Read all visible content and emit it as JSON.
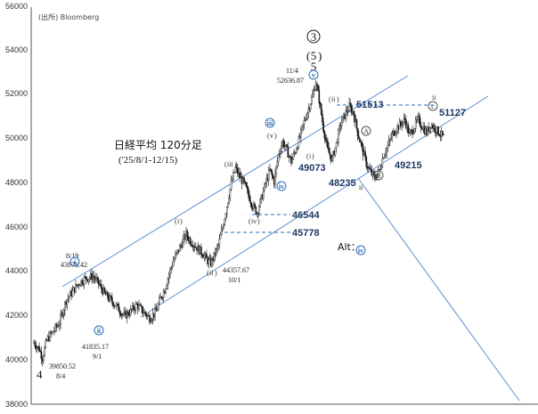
{
  "header": {
    "source": "(出所)  Bloomberg",
    "title": "日経平均 120分足",
    "subtitle": "('25/8/1-12/15)"
  },
  "chart_data": {
    "type": "candlestick",
    "y_ticks": [
      "38000",
      "40000",
      "42000",
      "44000",
      "46000",
      "48000",
      "50000",
      "52000",
      "54000",
      "56000"
    ],
    "ylim": [
      38000,
      56000
    ],
    "price_path": [
      [
        0,
        40800
      ],
      [
        5,
        40500
      ],
      [
        8,
        40100
      ],
      [
        12,
        40900
      ],
      [
        18,
        41300
      ],
      [
        24,
        41700
      ],
      [
        30,
        42700
      ],
      [
        36,
        43100
      ],
      [
        42,
        43500
      ],
      [
        48,
        43700
      ],
      [
        55,
        43800
      ],
      [
        60,
        43500
      ],
      [
        66,
        43000
      ],
      [
        72,
        42700
      ],
      [
        78,
        42400
      ],
      [
        84,
        42000
      ],
      [
        90,
        42200
      ],
      [
        96,
        42500
      ],
      [
        102,
        42200
      ],
      [
        108,
        41900
      ],
      [
        114,
        42200
      ],
      [
        118,
        42800
      ],
      [
        122,
        43200
      ],
      [
        126,
        43900
      ],
      [
        130,
        44500
      ],
      [
        134,
        44900
      ],
      [
        138,
        45300
      ],
      [
        142,
        45700
      ],
      [
        146,
        45400
      ],
      [
        152,
        45100
      ],
      [
        158,
        44800
      ],
      [
        162,
        44500
      ],
      [
        165,
        44400
      ],
      [
        168,
        44700
      ],
      [
        172,
        45200
      ],
      [
        176,
        46000
      ],
      [
        180,
        47000
      ],
      [
        184,
        48000
      ],
      [
        188,
        48700
      ],
      [
        192,
        48300
      ],
      [
        196,
        48000
      ],
      [
        200,
        47500
      ],
      [
        204,
        47000
      ],
      [
        208,
        46700
      ],
      [
        212,
        47300
      ],
      [
        216,
        48000
      ],
      [
        220,
        48600
      ],
      [
        224,
        48100
      ],
      [
        228,
        49300
      ],
      [
        232,
        49900
      ],
      [
        236,
        49500
      ],
      [
        240,
        49000
      ],
      [
        244,
        49500
      ],
      [
        248,
        50100
      ],
      [
        252,
        50800
      ],
      [
        256,
        51400
      ],
      [
        260,
        52000
      ],
      [
        263,
        52600
      ],
      [
        266,
        51800
      ],
      [
        270,
        50500
      ],
      [
        274,
        49500
      ],
      [
        278,
        49100
      ],
      [
        282,
        49800
      ],
      [
        286,
        50700
      ],
      [
        290,
        51100
      ],
      [
        294,
        51500
      ],
      [
        298,
        51200
      ],
      [
        302,
        50300
      ],
      [
        306,
        49600
      ],
      [
        310,
        48900
      ],
      [
        314,
        48500
      ],
      [
        318,
        48250
      ],
      [
        322,
        48600
      ],
      [
        326,
        49300
      ],
      [
        330,
        49700
      ],
      [
        334,
        50200
      ],
      [
        338,
        50500
      ],
      [
        342,
        50700
      ],
      [
        346,
        50900
      ],
      [
        350,
        50200
      ],
      [
        354,
        50500
      ],
      [
        358,
        50900
      ],
      [
        362,
        50600
      ],
      [
        366,
        50300
      ],
      [
        370,
        50700
      ],
      [
        374,
        50500
      ],
      [
        378,
        50300
      ],
      [
        382,
        50100
      ]
    ],
    "levels": [
      "51513",
      "46544",
      "45778",
      "49073",
      "48235",
      "49215",
      "51127"
    ],
    "annotations": [
      {
        "text": "8/19"
      },
      {
        "text": "43876.42"
      },
      {
        "text": "11/4"
      },
      {
        "text": "52636.87"
      },
      {
        "text": "44357.67"
      },
      {
        "text": "10/1"
      },
      {
        "text": "41835.17"
      },
      {
        "text": "9/1"
      },
      {
        "text": "39850.52"
      },
      {
        "text": "8/4"
      }
    ],
    "waves": {
      "circled_roman_blue": [
        "i",
        "ii",
        "iii",
        "iv"
      ],
      "roman_plain": [
        "i",
        "ii",
        "iii",
        "iv",
        "v",
        "ii",
        "i",
        "ii",
        "ii"
      ],
      "circled_roman_gray": [
        "v"
      ],
      "abc": [
        "A",
        "B",
        "c"
      ],
      "big": [
        "3",
        "5",
        "5",
        "4"
      ]
    },
    "alt_label": "Alt：",
    "alt_wave": "iv"
  }
}
